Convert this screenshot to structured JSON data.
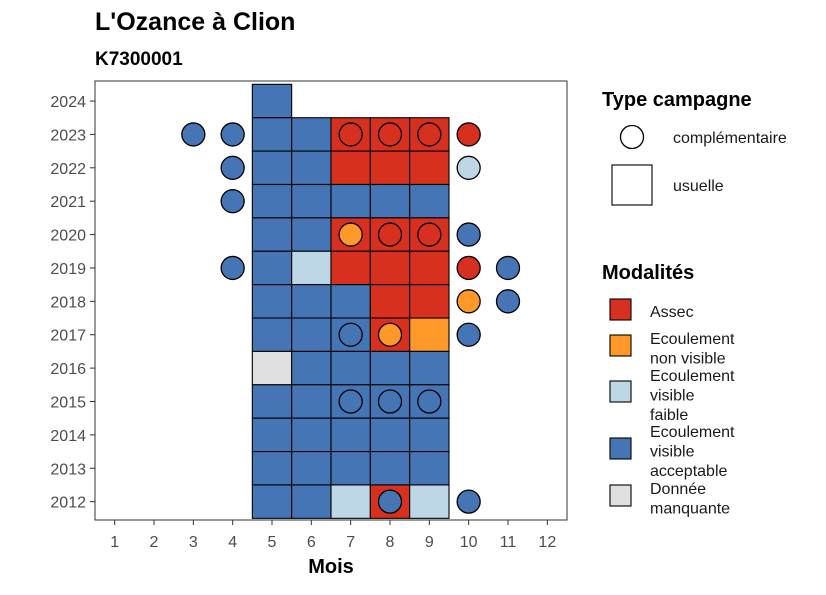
{
  "title": "L'Ozance à Clion",
  "subtitle": "K7300001",
  "chart_data": {
    "type": "heatmap",
    "xlabel": "Mois",
    "ylabel": "",
    "x_ticks": [
      1,
      2,
      3,
      4,
      5,
      6,
      7,
      8,
      9,
      10,
      11,
      12
    ],
    "y_ticks": [
      2012,
      2013,
      2014,
      2015,
      2016,
      2017,
      2018,
      2019,
      2020,
      2021,
      2022,
      2023,
      2024
    ],
    "xlim": [
      0.5,
      12.5
    ],
    "ylim": [
      2011.45,
      2024.6
    ],
    "colors": {
      "Assec": "#D7301F",
      "Ecoulement non visible": "#FE9929",
      "Ecoulement visible faible": "#BDD7E7",
      "Ecoulement visible acceptable": "#4575B4",
      "Donnée manquante": "#E0E0E0"
    },
    "usuelle": [
      {
        "year": 2024,
        "months": [
          5
        ],
        "values": [
          "Ecoulement visible acceptable"
        ]
      },
      {
        "year": 2023,
        "months": [
          5,
          6,
          7,
          8,
          9
        ],
        "values": [
          "Ecoulement visible acceptable",
          "Ecoulement visible acceptable",
          "Assec",
          "Assec",
          "Assec"
        ]
      },
      {
        "year": 2022,
        "months": [
          5,
          6,
          7,
          8,
          9
        ],
        "values": [
          "Ecoulement visible acceptable",
          "Ecoulement visible acceptable",
          "Assec",
          "Assec",
          "Assec"
        ]
      },
      {
        "year": 2021,
        "months": [
          5,
          6,
          7,
          8,
          9
        ],
        "values": [
          "Ecoulement visible acceptable",
          "Ecoulement visible acceptable",
          "Ecoulement visible acceptable",
          "Ecoulement visible acceptable",
          "Ecoulement visible acceptable"
        ]
      },
      {
        "year": 2020,
        "months": [
          5,
          6,
          7,
          8,
          9
        ],
        "values": [
          "Ecoulement visible acceptable",
          "Ecoulement visible acceptable",
          "Assec",
          "Assec",
          "Assec"
        ]
      },
      {
        "year": 2019,
        "months": [
          5,
          6,
          7,
          8,
          9
        ],
        "values": [
          "Ecoulement visible acceptable",
          "Ecoulement visible faible",
          "Assec",
          "Assec",
          "Assec"
        ]
      },
      {
        "year": 2018,
        "months": [
          5,
          6,
          7,
          8,
          9
        ],
        "values": [
          "Ecoulement visible acceptable",
          "Ecoulement visible acceptable",
          "Ecoulement visible acceptable",
          "Assec",
          "Assec"
        ]
      },
      {
        "year": 2017,
        "months": [
          5,
          6,
          7,
          8,
          9
        ],
        "values": [
          "Ecoulement visible acceptable",
          "Ecoulement visible acceptable",
          "Ecoulement visible acceptable",
          "Assec",
          "Ecoulement non visible"
        ]
      },
      {
        "year": 2016,
        "months": [
          5,
          6,
          7,
          8,
          9
        ],
        "values": [
          "Donnée manquante",
          "Ecoulement visible acceptable",
          "Ecoulement visible acceptable",
          "Ecoulement visible acceptable",
          "Ecoulement visible acceptable"
        ]
      },
      {
        "year": 2015,
        "months": [
          5,
          6,
          7,
          8,
          9
        ],
        "values": [
          "Ecoulement visible acceptable",
          "Ecoulement visible acceptable",
          "Ecoulement visible acceptable",
          "Ecoulement visible acceptable",
          "Ecoulement visible acceptable"
        ]
      },
      {
        "year": 2014,
        "months": [
          5,
          6,
          7,
          8,
          9
        ],
        "values": [
          "Ecoulement visible acceptable",
          "Ecoulement visible acceptable",
          "Ecoulement visible acceptable",
          "Ecoulement visible acceptable",
          "Ecoulement visible acceptable"
        ]
      },
      {
        "year": 2013,
        "months": [
          5,
          6,
          7,
          8,
          9
        ],
        "values": [
          "Ecoulement visible acceptable",
          "Ecoulement visible acceptable",
          "Ecoulement visible acceptable",
          "Ecoulement visible acceptable",
          "Ecoulement visible acceptable"
        ]
      },
      {
        "year": 2012,
        "months": [
          5,
          6,
          7,
          8,
          9
        ],
        "values": [
          "Ecoulement visible acceptable",
          "Ecoulement visible acceptable",
          "Ecoulement visible faible",
          "Assec",
          "Ecoulement visible faible"
        ]
      }
    ],
    "complementaire": [
      {
        "year": 2023,
        "month": 3,
        "value": "Ecoulement visible acceptable"
      },
      {
        "year": 2023,
        "month": 4,
        "value": "Ecoulement visible acceptable"
      },
      {
        "year": 2023,
        "month": 7,
        "value": "Assec"
      },
      {
        "year": 2023,
        "month": 8,
        "value": "Assec"
      },
      {
        "year": 2023,
        "month": 9,
        "value": "Assec"
      },
      {
        "year": 2023,
        "month": 10,
        "value": "Assec"
      },
      {
        "year": 2022,
        "month": 4,
        "value": "Ecoulement visible acceptable"
      },
      {
        "year": 2022,
        "month": 10,
        "value": "Ecoulement visible faible"
      },
      {
        "year": 2021,
        "month": 4,
        "value": "Ecoulement visible acceptable"
      },
      {
        "year": 2020,
        "month": 7,
        "value": "Ecoulement non visible"
      },
      {
        "year": 2020,
        "month": 8,
        "value": "Assec"
      },
      {
        "year": 2020,
        "month": 9,
        "value": "Assec"
      },
      {
        "year": 2020,
        "month": 10,
        "value": "Ecoulement visible acceptable"
      },
      {
        "year": 2019,
        "month": 4,
        "value": "Ecoulement visible acceptable"
      },
      {
        "year": 2019,
        "month": 10,
        "value": "Assec"
      },
      {
        "year": 2019,
        "month": 11,
        "value": "Ecoulement visible acceptable"
      },
      {
        "year": 2018,
        "month": 10,
        "value": "Ecoulement non visible"
      },
      {
        "year": 2018,
        "month": 11,
        "value": "Ecoulement visible acceptable"
      },
      {
        "year": 2017,
        "month": 7,
        "value": "Ecoulement visible acceptable"
      },
      {
        "year": 2017,
        "month": 8,
        "value": "Ecoulement non visible"
      },
      {
        "year": 2017,
        "month": 10,
        "value": "Ecoulement visible acceptable"
      },
      {
        "year": 2015,
        "month": 7,
        "value": "Ecoulement visible acceptable"
      },
      {
        "year": 2015,
        "month": 8,
        "value": "Ecoulement visible acceptable"
      },
      {
        "year": 2015,
        "month": 9,
        "value": "Ecoulement visible acceptable"
      },
      {
        "year": 2012,
        "month": 8,
        "value": "Ecoulement visible acceptable"
      },
      {
        "year": 2012,
        "month": 10,
        "value": "Ecoulement visible acceptable"
      }
    ],
    "legend_type": {
      "title": "Type campagne",
      "items": [
        "complémentaire",
        "usuelle"
      ]
    },
    "legend_modalites": {
      "title": "Modalités",
      "items": [
        {
          "name": "Assec",
          "lines": [
            "Assec"
          ]
        },
        {
          "name": "Ecoulement non visible",
          "lines": [
            "Ecoulement",
            "non visible"
          ]
        },
        {
          "name": "Ecoulement visible faible",
          "lines": [
            "Ecoulement",
            "visible",
            "faible"
          ]
        },
        {
          "name": "Ecoulement visible acceptable",
          "lines": [
            "Ecoulement",
            "visible",
            "acceptable"
          ]
        },
        {
          "name": "Donnée manquante",
          "lines": [
            "Donnée",
            "manquante"
          ]
        }
      ]
    },
    "legend_placement": "right"
  }
}
